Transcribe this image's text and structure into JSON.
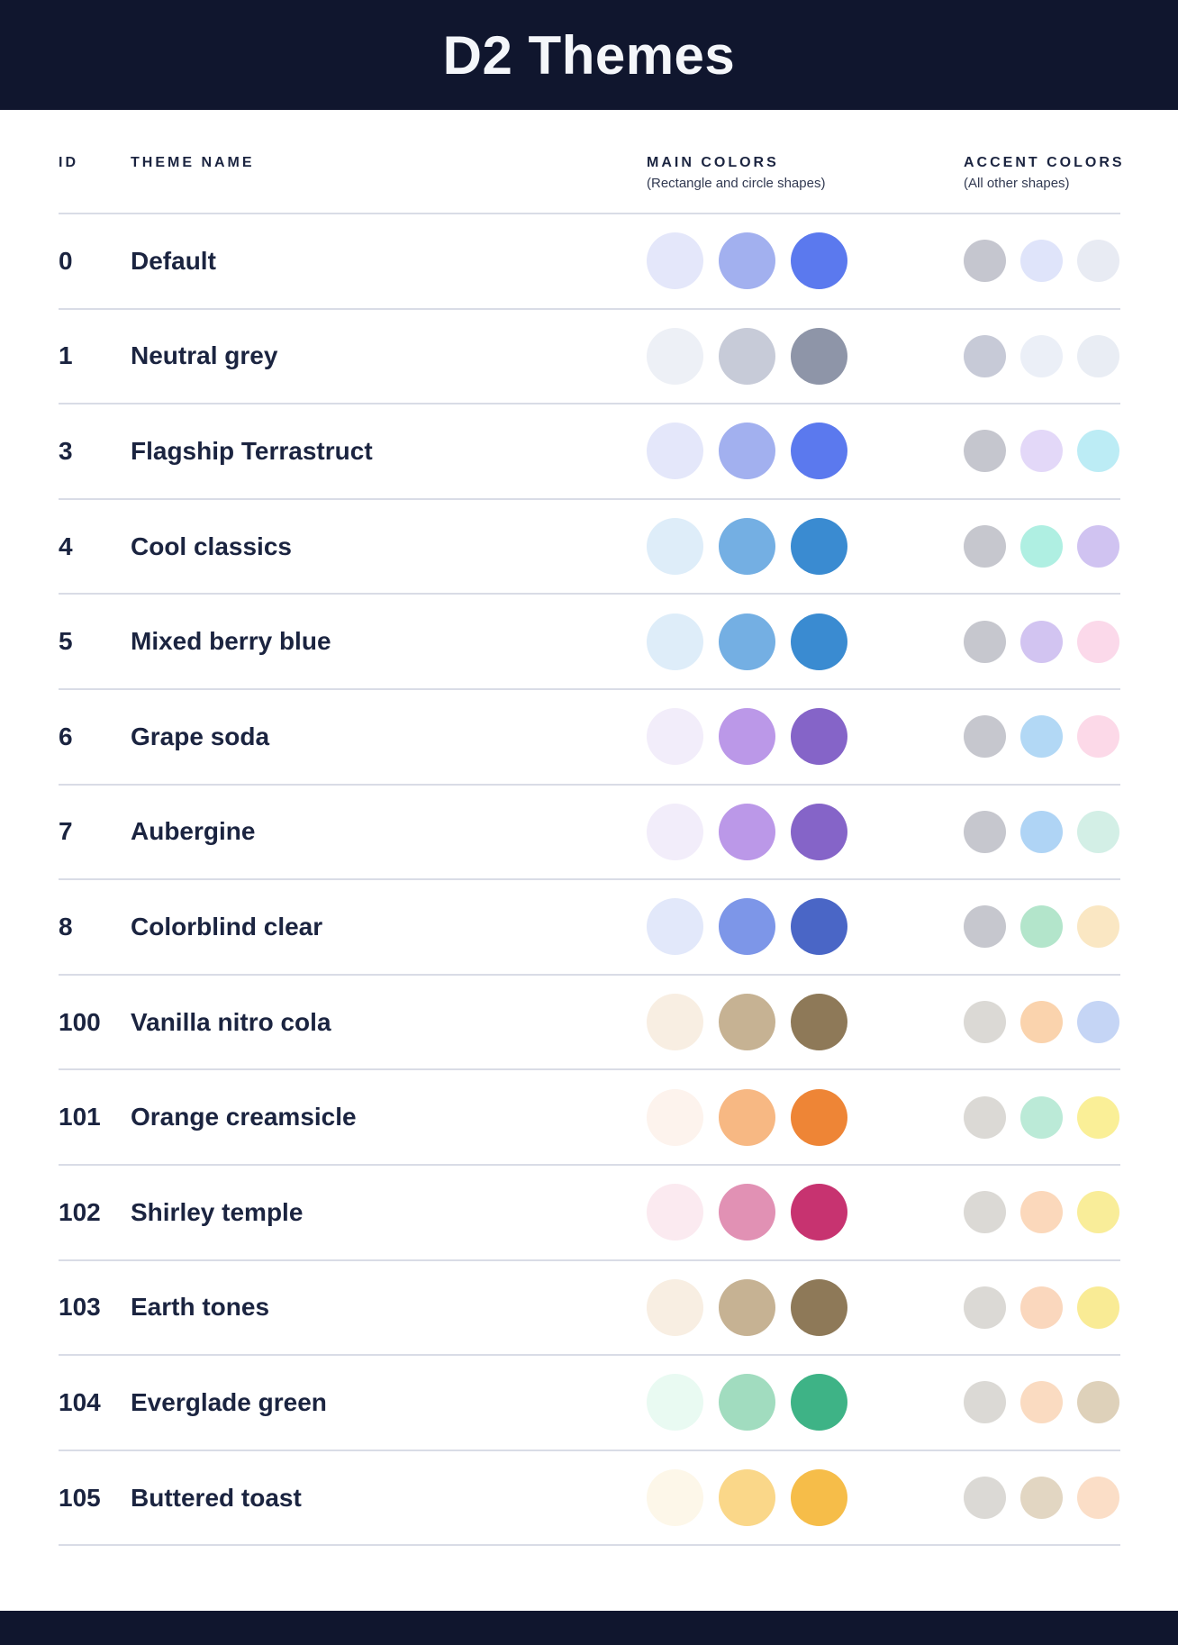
{
  "header": {
    "title": "D2 Themes"
  },
  "colors": {
    "header_bg": "#10162e",
    "header_text": "#f4f6fa",
    "table_text": "#1b2440",
    "divider": "#d9dce6"
  },
  "table": {
    "columns": {
      "id_label": "ID",
      "name_label": "THEME NAME",
      "main_label": "MAIN COLORS",
      "main_sublabel": "(Rectangle and circle shapes)",
      "accent_label": "ACCENT COLORS",
      "accent_sublabel": "(All other shapes)"
    },
    "rows": [
      {
        "id": "0",
        "name": "Default",
        "main": [
          "#E4E7FA",
          "#A2B0EF",
          "#5B79EE"
        ],
        "accent": [
          "#C5C6CF",
          "#DFE4FA",
          "#E8EBF3"
        ]
      },
      {
        "id": "1",
        "name": "Neutral grey",
        "main": [
          "#EDF0F6",
          "#C7CBD8",
          "#8E95A8"
        ],
        "accent": [
          "#C7CAD7",
          "#EBEFF7",
          "#E9EDF4"
        ]
      },
      {
        "id": "3",
        "name": "Flagship Terrastruct",
        "main": [
          "#E4E7FA",
          "#A2B0EF",
          "#5B79EE"
        ],
        "accent": [
          "#C5C6CE",
          "#E3D8F8",
          "#BCECF5"
        ]
      },
      {
        "id": "4",
        "name": "Cool classics",
        "main": [
          "#DEEDF9",
          "#74AFE3",
          "#3A8BD1"
        ],
        "accent": [
          "#C6C7CE",
          "#AFEFE2",
          "#D0C3F1"
        ]
      },
      {
        "id": "5",
        "name": "Mixed berry blue",
        "main": [
          "#DEEDF9",
          "#74AFE3",
          "#3A8BD1"
        ],
        "accent": [
          "#C6C7CE",
          "#D2C4F1",
          "#FBD9EA"
        ]
      },
      {
        "id": "6",
        "name": "Grape soda",
        "main": [
          "#F2EDFA",
          "#BB98E8",
          "#8564C8"
        ],
        "accent": [
          "#C6C7CE",
          "#B2D8F5",
          "#FCD9E8"
        ]
      },
      {
        "id": "7",
        "name": "Aubergine",
        "main": [
          "#F2EDFA",
          "#BB98E8",
          "#8564C8"
        ],
        "accent": [
          "#C6C7CE",
          "#AFD4F5",
          "#D3EFE6"
        ]
      },
      {
        "id": "8",
        "name": "Colorblind clear",
        "main": [
          "#E2E8FA",
          "#7D96E8",
          "#4A66C6"
        ],
        "accent": [
          "#C6C7CE",
          "#B3E5CB",
          "#FAE7C3"
        ]
      },
      {
        "id": "100",
        "name": "Vanilla nitro cola",
        "main": [
          "#F8EEE2",
          "#C6B293",
          "#8E7958"
        ],
        "accent": [
          "#DBD9D5",
          "#FAD3AD",
          "#C5D5F5"
        ]
      },
      {
        "id": "101",
        "name": "Orange creamsicle",
        "main": [
          "#FDF3ED",
          "#F7B883",
          "#EE8536"
        ],
        "accent": [
          "#DBD9D5",
          "#BBEAD7",
          "#FAEF97"
        ]
      },
      {
        "id": "102",
        "name": "Shirley temple",
        "main": [
          "#FBEAF0",
          "#E191B4",
          "#C73370"
        ],
        "accent": [
          "#DBD9D5",
          "#FBD8BB",
          "#F9ED99"
        ]
      },
      {
        "id": "103",
        "name": "Earth tones",
        "main": [
          "#F8EEE2",
          "#C6B293",
          "#8E7958"
        ],
        "accent": [
          "#DBD9D5",
          "#FAD7BD",
          "#F9EB95"
        ]
      },
      {
        "id": "104",
        "name": "Everglade green",
        "main": [
          "#E9FAF2",
          "#A1DCBF",
          "#3EB386"
        ],
        "accent": [
          "#DBD9D5",
          "#FADBC1",
          "#DED1BA"
        ]
      },
      {
        "id": "105",
        "name": "Buttered toast",
        "main": [
          "#FDF7E9",
          "#FAD789",
          "#F6BD49"
        ],
        "accent": [
          "#DBD9D5",
          "#E2D6C2",
          "#FBDEC7"
        ]
      }
    ]
  }
}
